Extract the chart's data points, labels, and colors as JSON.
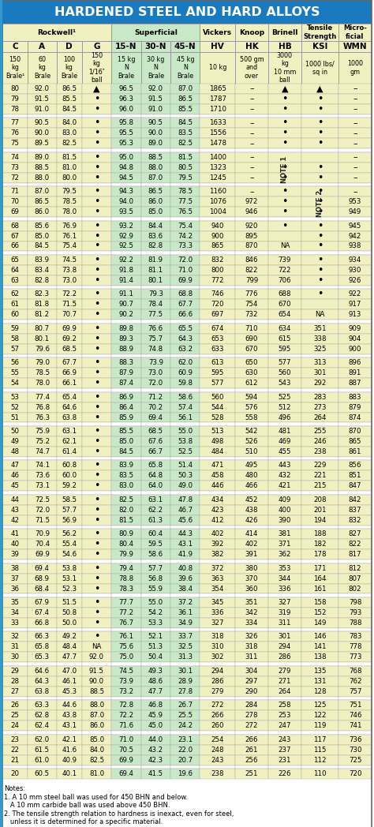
{
  "title": "HARDENED STEEL AND HARD ALLOYS",
  "title_bg": "#1a7abf",
  "title_color": "white",
  "groups": [
    {
      "label": "Rockwell¹",
      "cols": [
        0,
        1,
        2,
        3
      ],
      "bg": "#f0f0c0"
    },
    {
      "label": "Superficial",
      "cols": [
        4,
        5,
        6
      ],
      "bg": "#c8e8c8"
    },
    {
      "label": "Vickers",
      "cols": [
        7
      ],
      "bg": "#f0f0c0"
    },
    {
      "label": "Knoop",
      "cols": [
        8
      ],
      "bg": "#f0f0c0"
    },
    {
      "label": "Brinell",
      "cols": [
        9
      ],
      "bg": "#f0f0c0"
    },
    {
      "label": "Tensile\nStrength",
      "cols": [
        10
      ],
      "bg": "#f0f0c0"
    },
    {
      "label": "Micro-\nficial",
      "cols": [
        11
      ],
      "bg": "#f0f0c0"
    }
  ],
  "col_letters": [
    "C",
    "A",
    "D",
    "G",
    "15-N",
    "30-N",
    "45-N",
    "HV",
    "HK",
    "HB",
    "KSI",
    "WMN"
  ],
  "col_units": [
    "150\nkg\nBrale¹",
    "60\nkg\nBrale",
    "100\nkg\nBrale",
    "150\nkg\n1/16″\nball",
    "15 kg\nN\nBrale",
    "30 kg\nN\nBrale",
    "45 kg\nN\nBrale",
    "10 kg",
    "500 gm\nand\nover",
    "3000\nkg\n10 mm\nball",
    "1000 lbs/\nsq in",
    "1000\ngm"
  ],
  "col_bgs": [
    "#f0f0c0",
    "#f0f0c0",
    "#f0f0c0",
    "#f0f0c0",
    "#c8e8c8",
    "#c8e8c8",
    "#c8e8c8",
    "#f0f0c0",
    "#f0f0c0",
    "#f0f0c0",
    "#f0f0c0",
    "#f0f0c0"
  ],
  "col_ratios": [
    0.72,
    0.82,
    0.72,
    0.84,
    0.84,
    0.84,
    0.84,
    1.0,
    0.94,
    0.94,
    1.06,
    0.94
  ],
  "rows": [
    [
      "80",
      "92.0",
      "86.5",
      "▲",
      "96.5",
      "92.0",
      "87.0",
      "1865",
      "–",
      "▲",
      "▲",
      "–"
    ],
    [
      "79",
      "91.5",
      "85.5",
      "•",
      "96.3",
      "91.5",
      "86.5",
      "1787",
      "–",
      "•",
      "•",
      "–"
    ],
    [
      "78",
      "91.0",
      "84.5",
      "•",
      "96.0",
      "91.0",
      "85.5",
      "1710",
      "–",
      "•",
      "•",
      "–"
    ],
    [
      "",
      "",
      "",
      "",
      "",
      "",
      "",
      "",
      "",
      "",
      "",
      ""
    ],
    [
      "77",
      "90.5",
      "84.0",
      "•",
      "95.8",
      "90.5",
      "84.5",
      "1633",
      "–",
      "•",
      "•",
      "–"
    ],
    [
      "76",
      "90.0",
      "83.0",
      "•",
      "95.5",
      "90.0",
      "83.5",
      "1556",
      "–",
      "•",
      "•",
      "–"
    ],
    [
      "75",
      "89.5",
      "82.5",
      "•",
      "95.3",
      "89.0",
      "82.5",
      "1478",
      "–",
      "•",
      "•",
      "–"
    ],
    [
      "",
      "",
      "",
      "",
      "",
      "",
      "",
      "",
      "",
      "",
      "",
      ""
    ],
    [
      "74",
      "89.0",
      "81.5",
      "•",
      "95.0",
      "88.5",
      "81.5",
      "1400",
      "–",
      "NOTE1",
      "NOTE2",
      "–"
    ],
    [
      "73",
      "88.5",
      "81.0",
      "•",
      "94.8",
      "88.0",
      "80.5",
      "1323",
      "–",
      "•",
      "•",
      "–"
    ],
    [
      "72",
      "88.0",
      "80.0",
      "•",
      "94.5",
      "87.0",
      "79.5",
      "1245",
      "–",
      "•",
      "•",
      "–"
    ],
    [
      "",
      "",
      "",
      "",
      "",
      "",
      "",
      "",
      "",
      "",
      "",
      ""
    ],
    [
      "71",
      "87.0",
      "79.5",
      "•",
      "94.3",
      "86.5",
      "78.5",
      "1160",
      "–",
      "•",
      "•",
      "–"
    ],
    [
      "70",
      "86.5",
      "78.5",
      "•",
      "94.0",
      "86.0",
      "77.5",
      "1076",
      "972",
      "•",
      "•",
      "953"
    ],
    [
      "69",
      "86.0",
      "78.0",
      "•",
      "93.5",
      "85.0",
      "76.5",
      "1004",
      "946",
      "•",
      "•",
      "949"
    ],
    [
      "",
      "",
      "",
      "",
      "",
      "",
      "",
      "",
      "",
      "",
      "",
      ""
    ],
    [
      "68",
      "85.6",
      "76.9",
      "•",
      "93.2",
      "84.4",
      "75.4",
      "940",
      "920",
      "•",
      "•",
      "945"
    ],
    [
      "67",
      "85.0",
      "76.1",
      "•",
      "92.9",
      "83.6",
      "74.2",
      "900",
      "895",
      "",
      "•",
      "942"
    ],
    [
      "66",
      "84.5",
      "75.4",
      "•",
      "92.5",
      "82.8",
      "73.3",
      "865",
      "870",
      "NA",
      "•",
      "938"
    ],
    [
      "",
      "",
      "",
      "",
      "",
      "",
      "",
      "",
      "",
      "",
      "",
      ""
    ],
    [
      "65",
      "83.9",
      "74.5",
      "•",
      "92.2",
      "81.9",
      "72.0",
      "832",
      "846",
      "739",
      "•",
      "934"
    ],
    [
      "64",
      "83.4",
      "73.8",
      "•",
      "91.8",
      "81.1",
      "71.0",
      "800",
      "822",
      "722",
      "•",
      "930"
    ],
    [
      "63",
      "82.8",
      "73.0",
      "•",
      "91.4",
      "80.1",
      "69.9",
      "772",
      "799",
      "706",
      "•",
      "926"
    ],
    [
      "",
      "",
      "",
      "",
      "",
      "",
      "",
      "",
      "",
      "",
      "",
      ""
    ],
    [
      "62",
      "82.3",
      "72.2",
      "•",
      "91.1",
      "79.3",
      "68.8",
      "746",
      "776",
      "688",
      "•",
      "922"
    ],
    [
      "61",
      "81.8",
      "71.5",
      "•",
      "90.7",
      "78.4",
      "67.7",
      "720",
      "754",
      "670",
      "",
      "917"
    ],
    [
      "60",
      "81.2",
      "70.7",
      "•",
      "90.2",
      "77.5",
      "66.6",
      "697",
      "732",
      "654",
      "NA",
      "913"
    ],
    [
      "",
      "",
      "",
      "",
      "",
      "",
      "",
      "",
      "",
      "",
      "",
      ""
    ],
    [
      "59",
      "80.7",
      "69.9",
      "•",
      "89.8",
      "76.6",
      "65.5",
      "674",
      "710",
      "634",
      "351",
      "909"
    ],
    [
      "58",
      "80.1",
      "69.2",
      "•",
      "89.3",
      "75.7",
      "64.3",
      "653",
      "690",
      "615",
      "338",
      "904"
    ],
    [
      "57",
      "79.6",
      "68.5",
      "•",
      "88.9",
      "74.8",
      "63.2",
      "633",
      "670",
      "595",
      "325",
      "900"
    ],
    [
      "",
      "",
      "",
      "",
      "",
      "",
      "",
      "",
      "",
      "",
      "",
      ""
    ],
    [
      "56",
      "79.0",
      "67.7",
      "•",
      "88.3",
      "73.9",
      "62.0",
      "613",
      "650",
      "577",
      "313",
      "896"
    ],
    [
      "55",
      "78.5",
      "66.9",
      "•",
      "87.9",
      "73.0",
      "60.9",
      "595",
      "630",
      "560",
      "301",
      "891"
    ],
    [
      "54",
      "78.0",
      "66.1",
      "•",
      "87.4",
      "72.0",
      "59.8",
      "577",
      "612",
      "543",
      "292",
      "887"
    ],
    [
      "",
      "",
      "",
      "",
      "",
      "",
      "",
      "",
      "",
      "",
      "",
      ""
    ],
    [
      "53",
      "77.4",
      "65.4",
      "•",
      "86.9",
      "71.2",
      "58.6",
      "560",
      "594",
      "525",
      "283",
      "883"
    ],
    [
      "52",
      "76.8",
      "64.6",
      "•",
      "86.4",
      "70.2",
      "57.4",
      "544",
      "576",
      "512",
      "273",
      "879"
    ],
    [
      "51",
      "76.3",
      "63.8",
      "•",
      "85.9",
      "69.4",
      "56.1",
      "528",
      "558",
      "496",
      "264",
      "874"
    ],
    [
      "",
      "",
      "",
      "",
      "",
      "",
      "",
      "",
      "",
      "",
      "",
      ""
    ],
    [
      "50",
      "75.9",
      "63.1",
      "•",
      "85.5",
      "68.5",
      "55.0",
      "513",
      "542",
      "481",
      "255",
      "870"
    ],
    [
      "49",
      "75.2",
      "62.1",
      "•",
      "85.0",
      "67.6",
      "53.8",
      "498",
      "526",
      "469",
      "246",
      "865"
    ],
    [
      "48",
      "74.7",
      "61.4",
      "•",
      "84.5",
      "66.7",
      "52.5",
      "484",
      "510",
      "455",
      "238",
      "861"
    ],
    [
      "",
      "",
      "",
      "",
      "",
      "",
      "",
      "",
      "",
      "",
      "",
      ""
    ],
    [
      "47",
      "74.1",
      "60.8",
      "•",
      "83.9",
      "65.8",
      "51.4",
      "471",
      "495",
      "443",
      "229",
      "856"
    ],
    [
      "46",
      "73.6",
      "60.0",
      "•",
      "83.5",
      "64.8",
      "50.3",
      "458",
      "480",
      "432",
      "221",
      "851"
    ],
    [
      "45",
      "73.1",
      "59.2",
      "•",
      "83.0",
      "64.0",
      "49.0",
      "446",
      "466",
      "421",
      "215",
      "847"
    ],
    [
      "",
      "",
      "",
      "",
      "",
      "",
      "",
      "",
      "",
      "",
      "",
      ""
    ],
    [
      "44",
      "72.5",
      "58.5",
      "•",
      "82.5",
      "63.1",
      "47.8",
      "434",
      "452",
      "409",
      "208",
      "842"
    ],
    [
      "43",
      "72.0",
      "57.7",
      "•",
      "82.0",
      "62.2",
      "46.7",
      "423",
      "438",
      "400",
      "201",
      "837"
    ],
    [
      "42",
      "71.5",
      "56.9",
      "•",
      "81.5",
      "61.3",
      "45.6",
      "412",
      "426",
      "390",
      "194",
      "832"
    ],
    [
      "",
      "",
      "",
      "",
      "",
      "",
      "",
      "",
      "",
      "",
      "",
      ""
    ],
    [
      "41",
      "70.9",
      "56.2",
      "•",
      "80.9",
      "60.4",
      "44.3",
      "402",
      "414",
      "381",
      "188",
      "827"
    ],
    [
      "40",
      "70.4",
      "55.4",
      "•",
      "80.4",
      "59.5",
      "43.1",
      "392",
      "402",
      "371",
      "182",
      "822"
    ],
    [
      "39",
      "69.9",
      "54.6",
      "•",
      "79.9",
      "58.6",
      "41.9",
      "382",
      "391",
      "362",
      "178",
      "817"
    ],
    [
      "",
      "",
      "",
      "",
      "",
      "",
      "",
      "",
      "",
      "",
      "",
      ""
    ],
    [
      "38",
      "69.4",
      "53.8",
      "•",
      "79.4",
      "57.7",
      "40.8",
      "372",
      "380",
      "353",
      "171",
      "812"
    ],
    [
      "37",
      "68.9",
      "53.1",
      "•",
      "78.8",
      "56.8",
      "39.6",
      "363",
      "370",
      "344",
      "164",
      "807"
    ],
    [
      "36",
      "68.4",
      "52.3",
      "•",
      "78.3",
      "55.9",
      "38.4",
      "354",
      "360",
      "336",
      "161",
      "802"
    ],
    [
      "",
      "",
      "",
      "",
      "",
      "",
      "",
      "",
      "",
      "",
      "",
      ""
    ],
    [
      "35",
      "67.9",
      "51.5",
      "•",
      "77.7",
      "55.0",
      "37.2",
      "345",
      "351",
      "327",
      "158",
      "798"
    ],
    [
      "34",
      "67.4",
      "50.8",
      "•",
      "77.2",
      "54.2",
      "36.1",
      "336",
      "342",
      "319",
      "152",
      "793"
    ],
    [
      "33",
      "66.8",
      "50.0",
      "•",
      "76.7",
      "53.3",
      "34.9",
      "327",
      "334",
      "311",
      "149",
      "788"
    ],
    [
      "",
      "",
      "",
      "",
      "",
      "",
      "",
      "",
      "",
      "",
      "",
      ""
    ],
    [
      "32",
      "66.3",
      "49.2",
      "•",
      "76.1",
      "52.1",
      "33.7",
      "318",
      "326",
      "301",
      "146",
      "783"
    ],
    [
      "31",
      "65.8",
      "48.4",
      "NA",
      "75.6",
      "51.3",
      "32.5",
      "310",
      "318",
      "294",
      "141",
      "778"
    ],
    [
      "30",
      "65.3",
      "47.7",
      "92.0",
      "75.0",
      "50.4",
      "31.3",
      "302",
      "311",
      "286",
      "138",
      "773"
    ],
    [
      "",
      "",
      "",
      "",
      "",
      "",
      "",
      "",
      "",
      "",
      "",
      ""
    ],
    [
      "29",
      "64.6",
      "47.0",
      "91.5",
      "74.5",
      "49.3",
      "30.1",
      "294",
      "304",
      "279",
      "135",
      "768"
    ],
    [
      "28",
      "64.3",
      "46.1",
      "90.0",
      "73.9",
      "48.6",
      "28.9",
      "286",
      "297",
      "271",
      "131",
      "762"
    ],
    [
      "27",
      "63.8",
      "45.3",
      "88.5",
      "73.2",
      "47.7",
      "27.8",
      "279",
      "290",
      "264",
      "128",
      "757"
    ],
    [
      "",
      "",
      "",
      "",
      "",
      "",
      "",
      "",
      "",
      "",
      "",
      ""
    ],
    [
      "26",
      "63.3",
      "44.6",
      "88.0",
      "72.8",
      "46.8",
      "26.7",
      "272",
      "284",
      "258",
      "125",
      "751"
    ],
    [
      "25",
      "62.8",
      "43.8",
      "87.0",
      "72.2",
      "45.9",
      "25.5",
      "266",
      "278",
      "253",
      "122",
      "746"
    ],
    [
      "24",
      "62.4",
      "43.1",
      "86.0",
      "71.6",
      "45.0",
      "24.2",
      "260",
      "272",
      "247",
      "119",
      "741"
    ],
    [
      "",
      "",
      "",
      "",
      "",
      "",
      "",
      "",
      "",
      "",
      "",
      ""
    ],
    [
      "23",
      "62.0",
      "42.1",
      "85.0",
      "71.0",
      "44.0",
      "23.1",
      "254",
      "266",
      "243",
      "117",
      "736"
    ],
    [
      "22",
      "61.5",
      "41.6",
      "84.0",
      "70.5",
      "43.2",
      "22.0",
      "248",
      "261",
      "237",
      "115",
      "730"
    ],
    [
      "21",
      "61.0",
      "40.9",
      "82.5",
      "69.9",
      "42.3",
      "20.7",
      "243",
      "256",
      "231",
      "112",
      "725"
    ],
    [
      "",
      "",
      "",
      "",
      "",
      "",
      "",
      "",
      "",
      "",
      "",
      ""
    ],
    [
      "20",
      "60.5",
      "40.1",
      "81.0",
      "69.4",
      "41.5",
      "19.6",
      "238",
      "251",
      "226",
      "110",
      "720"
    ]
  ],
  "notes_lines": [
    "Notes:",
    "1. A 10 mm steel ball was used for 450 BHN and below.",
    "   A 10 mm carbide ball was used above 450 BHN.",
    "2. The tensile strength relation to hardness is inexact, even for steel,",
    "   unless it is determined for a specific material."
  ]
}
